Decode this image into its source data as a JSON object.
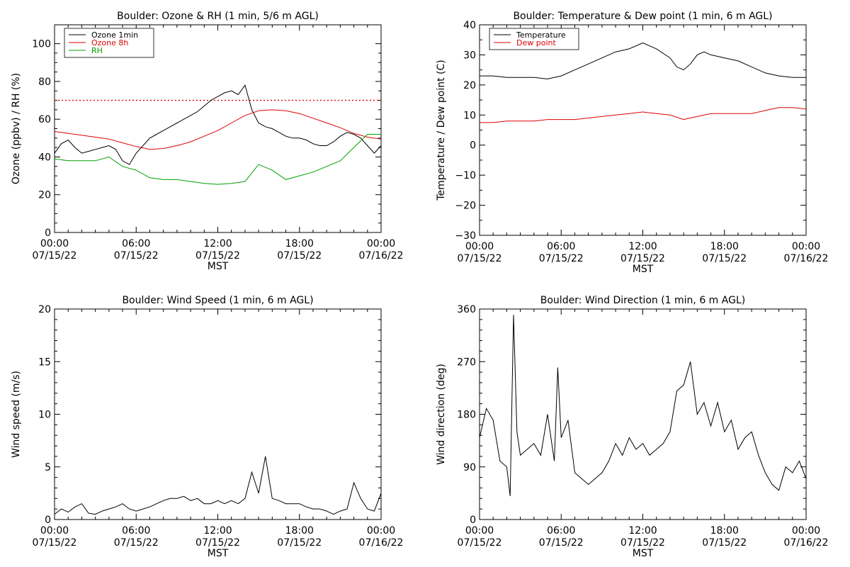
{
  "chart_data": [
    {
      "type": "line",
      "title": "Boulder: Ozone & RH (1 min, 5/6 m AGL)",
      "ylabel": "Ozone (ppbv) / RH (%)",
      "xlabel": "MST",
      "x_ticks": [
        {
          "time": "00:00",
          "date": "07/15/22"
        },
        {
          "time": "06:00",
          "date": "07/15/22"
        },
        {
          "time": "12:00",
          "date": "07/15/22"
        },
        {
          "time": "18:00",
          "date": "07/15/22"
        },
        {
          "time": "00:00",
          "date": "07/16/22"
        }
      ],
      "xlim": [
        0,
        24
      ],
      "ylim": [
        0,
        110
      ],
      "y_ticks": [
        "0",
        "20",
        "40",
        "60",
        "80",
        "100"
      ],
      "y_tick_values": [
        0,
        20,
        40,
        60,
        80,
        100
      ],
      "reference_line": {
        "y": 70,
        "color": "#dd0000",
        "style": "dotted"
      },
      "legend_position": "top-left",
      "series": [
        {
          "name": "Ozone 1min",
          "color": "#000000",
          "x": [
            0,
            0.5,
            1,
            1.5,
            2,
            2.5,
            3,
            3.5,
            4,
            4.5,
            5,
            5.5,
            6,
            6.5,
            7,
            7.5,
            8,
            8.5,
            9,
            9.5,
            10,
            10.5,
            11,
            11.5,
            12,
            12.5,
            13,
            13.5,
            14,
            14.5,
            15,
            15.5,
            16,
            16.5,
            17,
            17.5,
            18,
            18.5,
            19,
            19.5,
            20,
            20.5,
            21,
            21.5,
            22,
            22.5,
            23,
            23.5,
            24
          ],
          "y": [
            42,
            47,
            49,
            45,
            42,
            43,
            44,
            45,
            46,
            44,
            38,
            36,
            42,
            46,
            50,
            52,
            54,
            56,
            58,
            60,
            62,
            64,
            67,
            70,
            72,
            74,
            75,
            73,
            78,
            65,
            58,
            56,
            55,
            53,
            51,
            50,
            50,
            49,
            47,
            46,
            46,
            48,
            51,
            53,
            52,
            50,
            46,
            42,
            46
          ]
        },
        {
          "name": "Ozone 8h",
          "color": "#dd0000",
          "x": [
            0,
            1,
            2,
            3,
            4,
            5,
            6,
            7,
            8,
            9,
            10,
            11,
            12,
            13,
            14,
            15,
            16,
            17,
            18,
            19,
            20,
            21,
            22,
            23,
            24
          ],
          "y": [
            53.5,
            52.5,
            51.5,
            50.5,
            49.5,
            47.5,
            45.5,
            44,
            44.5,
            46,
            48,
            51,
            54,
            58,
            62,
            64.5,
            65,
            64.5,
            63,
            60.5,
            58,
            55.5,
            52.5,
            50.5,
            49.5
          ]
        },
        {
          "name": "RH",
          "color": "#00a000",
          "x": [
            0,
            1,
            2,
            3,
            4,
            5,
            6,
            7,
            8,
            9,
            10,
            11,
            12,
            13,
            14,
            15,
            16,
            17,
            18,
            19,
            20,
            21,
            22,
            23,
            24
          ],
          "y": [
            39,
            38,
            38,
            38,
            40,
            35,
            33,
            29,
            28,
            28,
            27,
            26,
            25.5,
            26,
            27,
            36,
            33,
            28,
            30,
            32,
            35,
            38,
            45,
            52,
            52
          ]
        }
      ]
    },
    {
      "type": "line",
      "title": "Boulder: Temperature & Dew point (1 min, 6 m AGL)",
      "ylabel": "Temperature / Dew point (C)",
      "xlabel": "MST",
      "x_ticks": [
        {
          "time": "00:00",
          "date": "07/15/22"
        },
        {
          "time": "06:00",
          "date": "07/15/22"
        },
        {
          "time": "12:00",
          "date": "07/15/22"
        },
        {
          "time": "18:00",
          "date": "07/15/22"
        },
        {
          "time": "00:00",
          "date": "07/16/22"
        }
      ],
      "xlim": [
        0,
        24
      ],
      "ylim": [
        -30,
        40
      ],
      "y_ticks": [
        "−30",
        "−20",
        "−10",
        "0",
        "10",
        "20",
        "30",
        "40"
      ],
      "y_tick_values": [
        -30,
        -20,
        -10,
        0,
        10,
        20,
        30,
        40
      ],
      "legend_position": "top-left",
      "series": [
        {
          "name": "Temperature",
          "color": "#000000",
          "x": [
            0,
            1,
            2,
            3,
            4,
            5,
            6,
            7,
            8,
            9,
            10,
            11,
            12,
            13,
            14,
            14.5,
            15,
            15.5,
            16,
            16.5,
            17,
            18,
            19,
            20,
            21,
            22,
            23,
            24
          ],
          "y": [
            23,
            23,
            22.5,
            22.5,
            22.5,
            22,
            23,
            25,
            27,
            29,
            31,
            32,
            34,
            32,
            29,
            26,
            25,
            27,
            30,
            31,
            30,
            29,
            28,
            26,
            24,
            23,
            22.5,
            22.5
          ]
        },
        {
          "name": "Dew point",
          "color": "#dd0000",
          "x": [
            0,
            1,
            2,
            3,
            4,
            5,
            6,
            7,
            8,
            9,
            10,
            11,
            12,
            13,
            14,
            15,
            16,
            17,
            18,
            19,
            20,
            21,
            22,
            23,
            24
          ],
          "y": [
            7.5,
            7.5,
            8,
            8,
            8,
            8.5,
            8.5,
            8.5,
            9,
            9.5,
            10,
            10.5,
            11,
            10.5,
            10,
            8.5,
            9.5,
            10.5,
            10.5,
            10.5,
            10.5,
            11.5,
            12.5,
            12.5,
            12
          ]
        }
      ]
    },
    {
      "type": "line",
      "title": "Boulder: Wind Speed (1 min, 6 m AGL)",
      "ylabel": "Wind speed (m/s)",
      "xlabel": "MST",
      "x_ticks": [
        {
          "time": "00:00",
          "date": "07/15/22"
        },
        {
          "time": "06:00",
          "date": "07/15/22"
        },
        {
          "time": "12:00",
          "date": "07/15/22"
        },
        {
          "time": "18:00",
          "date": "07/15/22"
        },
        {
          "time": "00:00",
          "date": "07/16/22"
        }
      ],
      "xlim": [
        0,
        24
      ],
      "ylim": [
        0,
        20
      ],
      "y_ticks": [
        "0",
        "5",
        "10",
        "15",
        "20"
      ],
      "y_tick_values": [
        0,
        5,
        10,
        15,
        20
      ],
      "series": [
        {
          "name": "",
          "color": "#000000",
          "x": [
            0,
            0.5,
            1,
            1.5,
            2,
            2.5,
            3,
            3.5,
            4,
            4.5,
            5,
            5.5,
            6,
            6.5,
            7,
            7.5,
            8,
            8.5,
            9,
            9.5,
            10,
            10.5,
            11,
            11.5,
            12,
            12.5,
            13,
            13.5,
            14,
            14.5,
            15,
            15.5,
            16,
            16.5,
            17,
            17.5,
            18,
            18.5,
            19,
            19.5,
            20,
            20.5,
            21,
            21.5,
            22,
            22.5,
            23,
            23.5,
            24
          ],
          "y": [
            0.5,
            1,
            0.7,
            1.2,
            1.5,
            0.6,
            0.5,
            0.8,
            1,
            1.2,
            1.5,
            1,
            0.8,
            1,
            1.2,
            1.5,
            1.8,
            2,
            2,
            2.2,
            1.8,
            2,
            1.5,
            1.5,
            1.8,
            1.5,
            1.8,
            1.5,
            2,
            4.5,
            2.5,
            6,
            2,
            1.8,
            1.5,
            1.5,
            1.5,
            1.2,
            1,
            1,
            0.8,
            0.5,
            0.8,
            1,
            3.5,
            2,
            1,
            0.8,
            2.5
          ]
        }
      ]
    },
    {
      "type": "line",
      "title": "Boulder: Wind Direction (1 min, 6 m AGL)",
      "ylabel": "Wind direction (deg)",
      "xlabel": "MST",
      "x_ticks": [
        {
          "time": "00:00",
          "date": "07/15/22"
        },
        {
          "time": "06:00",
          "date": "07/15/22"
        },
        {
          "time": "12:00",
          "date": "07/15/22"
        },
        {
          "time": "18:00",
          "date": "07/15/22"
        },
        {
          "time": "00:00",
          "date": "07/16/22"
        }
      ],
      "xlim": [
        0,
        24
      ],
      "ylim": [
        0,
        360
      ],
      "y_ticks": [
        "0",
        "90",
        "180",
        "270",
        "360"
      ],
      "y_tick_values": [
        0,
        90,
        180,
        270,
        360
      ],
      "series": [
        {
          "name": "",
          "color": "#000000",
          "x": [
            0,
            0.5,
            1,
            1.5,
            2,
            2.25,
            2.5,
            2.75,
            3,
            3.5,
            4,
            4.5,
            5,
            5.5,
            5.75,
            6,
            6.5,
            7,
            7.5,
            8,
            8.5,
            9,
            9.5,
            10,
            10.5,
            11,
            11.5,
            12,
            12.5,
            13,
            13.5,
            14,
            14.5,
            15,
            15.5,
            16,
            16.5,
            17,
            17.5,
            18,
            18.5,
            19,
            19.5,
            20,
            20.5,
            21,
            21.5,
            22,
            22.5,
            23,
            23.5,
            24
          ],
          "y": [
            140,
            190,
            170,
            100,
            90,
            40,
            350,
            150,
            110,
            120,
            130,
            110,
            180,
            100,
            260,
            140,
            170,
            80,
            70,
            60,
            70,
            80,
            100,
            130,
            110,
            140,
            120,
            130,
            110,
            120,
            130,
            150,
            220,
            230,
            270,
            180,
            200,
            160,
            200,
            150,
            170,
            120,
            140,
            150,
            110,
            80,
            60,
            50,
            90,
            80,
            100,
            70
          ]
        }
      ]
    }
  ]
}
